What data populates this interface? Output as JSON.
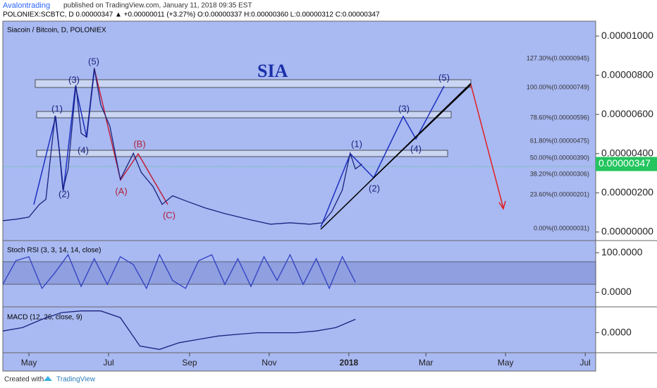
{
  "header": {
    "author": "Avalontrading",
    "published": "published on TradingView.com, January 11, 2018 09:35 EST",
    "quote": "POLONIEX:SCBTC, D  0.00000347 ▲ +0.00000011 (+3.27%) O:0.00000337 H:0.00000360 L:0.00000312 C:0.00000347"
  },
  "footer": {
    "created": "Created with",
    "brand": "TradingView"
  },
  "chart_data": [
    {
      "type": "line",
      "title": "Siacoin / Bitcoin, D, POLONIEX",
      "annotation": "SIA",
      "color": "#1a237e",
      "x": [
        10,
        20,
        30,
        38,
        43,
        50,
        53,
        56,
        60,
        66,
        70,
        74,
        80,
        85,
        92,
        100,
        104,
        110,
        116,
        125,
        132,
        140,
        150,
        165,
        180,
        200,
        215,
        230,
        245,
        255,
        262,
        270,
        276,
        280,
        285
      ],
      "values": [
        5.8e-07,
        6.5e-07,
        7.6e-07,
        1.41e-06,
        1.67e-06,
        5.94e-06,
        4.31e-06,
        2.14e-06,
        3.22e-06,
        7.5e-06,
        5.04e-06,
        4.85e-06,
        8.37e-06,
        6.49e-06,
        5.4e-06,
        2.68e-06,
        3.22e-06,
        4.02e-06,
        3.04e-06,
        2.32e-06,
        1.41e-06,
        1.85e-06,
        1.59e-06,
        1.23e-06,
        9.4e-07,
        6.2e-07,
        4e-07,
        4.7e-07,
        4e-07,
        4.7e-07,
        1.05e-06,
        2.14e-06,
        4.02e-06,
        3.22e-06,
        3.47e-06
      ],
      "xlim": [
        10,
        464
      ],
      "xticks": [
        {
          "value": 30,
          "label": "May"
        },
        {
          "value": 91,
          "label": "Jul"
        },
        {
          "value": 153,
          "label": "Sep"
        },
        {
          "value": 214,
          "label": "Nov"
        },
        {
          "value": 275,
          "label": "2018"
        },
        {
          "value": 334,
          "label": "Mar"
        },
        {
          "value": 395,
          "label": "May"
        },
        {
          "value": 456,
          "label": "Jul"
        }
      ],
      "ylim": [
        -4e-07,
        1.076e-05
      ],
      "yticks": [
        {
          "value": 0,
          "label": "0.00000000"
        },
        {
          "value": 2e-06,
          "label": "0.00000200"
        },
        {
          "value": 4e-06,
          "label": "0.00000400"
        },
        {
          "value": 6e-06,
          "label": "0.00000600"
        },
        {
          "value": 8e-06,
          "label": "0.00000800"
        },
        {
          "value": 1e-05,
          "label": "0.00001000"
        }
      ],
      "fib_levels": [
        "127.30%(0.00000945)",
        "100.00%(0.00000749)",
        "78.60%(0.00000596)",
        "61.80%(0.00000475)",
        "50.00%(0.00000390)",
        "38.20%(0.00000306)",
        "23.60%(0.00000201)",
        "0.00%(0.00000031)"
      ],
      "waves": [
        "(1)",
        "(2)",
        "(3)",
        "(4)",
        "(5)",
        "(A)",
        "(B)",
        "(C)",
        "(1)",
        "(2)",
        "(3)",
        "(4)",
        "(5)"
      ]
    },
    {
      "type": "line",
      "title": "Stoch RSI (3, 3, 14, 14, close)",
      "color": "#3040c0",
      "x": [
        10,
        20,
        30,
        40,
        50,
        60,
        70,
        80,
        90,
        100,
        110,
        120,
        130,
        140,
        150,
        160,
        170,
        180,
        190,
        200,
        210,
        220,
        230,
        240,
        250,
        260,
        270,
        280
      ],
      "values": [
        20,
        80,
        90,
        10,
        50,
        95,
        15,
        85,
        20,
        90,
        70,
        10,
        95,
        30,
        10,
        80,
        95,
        20,
        85,
        15,
        90,
        30,
        95,
        20,
        85,
        10,
        90,
        25
      ],
      "ylim": [
        -35,
        129
      ],
      "yticks": [
        {
          "value": 100,
          "label": "100.0000"
        },
        {
          "value": 0,
          "label": "0.0000"
        }
      ]
    },
    {
      "type": "line",
      "title": "MACD (12, 26, close, 9)",
      "color": "#1a237e",
      "x": [
        10,
        25,
        40,
        55,
        70,
        85,
        100,
        115,
        130,
        145,
        160,
        175,
        190,
        205,
        220,
        235,
        250,
        265,
        280
      ],
      "values": [
        1e-07,
        3e-07,
        8e-07,
        1.2e-06,
        1.3e-06,
        1.3e-06,
        9e-07,
        -8e-07,
        -1e-06,
        -6e-07,
        -4e-07,
        -2e-07,
        -1e-07,
        0,
        0,
        0,
        1e-07,
        3e-07,
        8e-07
      ],
      "ylim": [
        -1.2e-06,
        1.5e-06
      ],
      "yticks": [
        {
          "value": 0,
          "label": "0.0000"
        }
      ]
    }
  ]
}
